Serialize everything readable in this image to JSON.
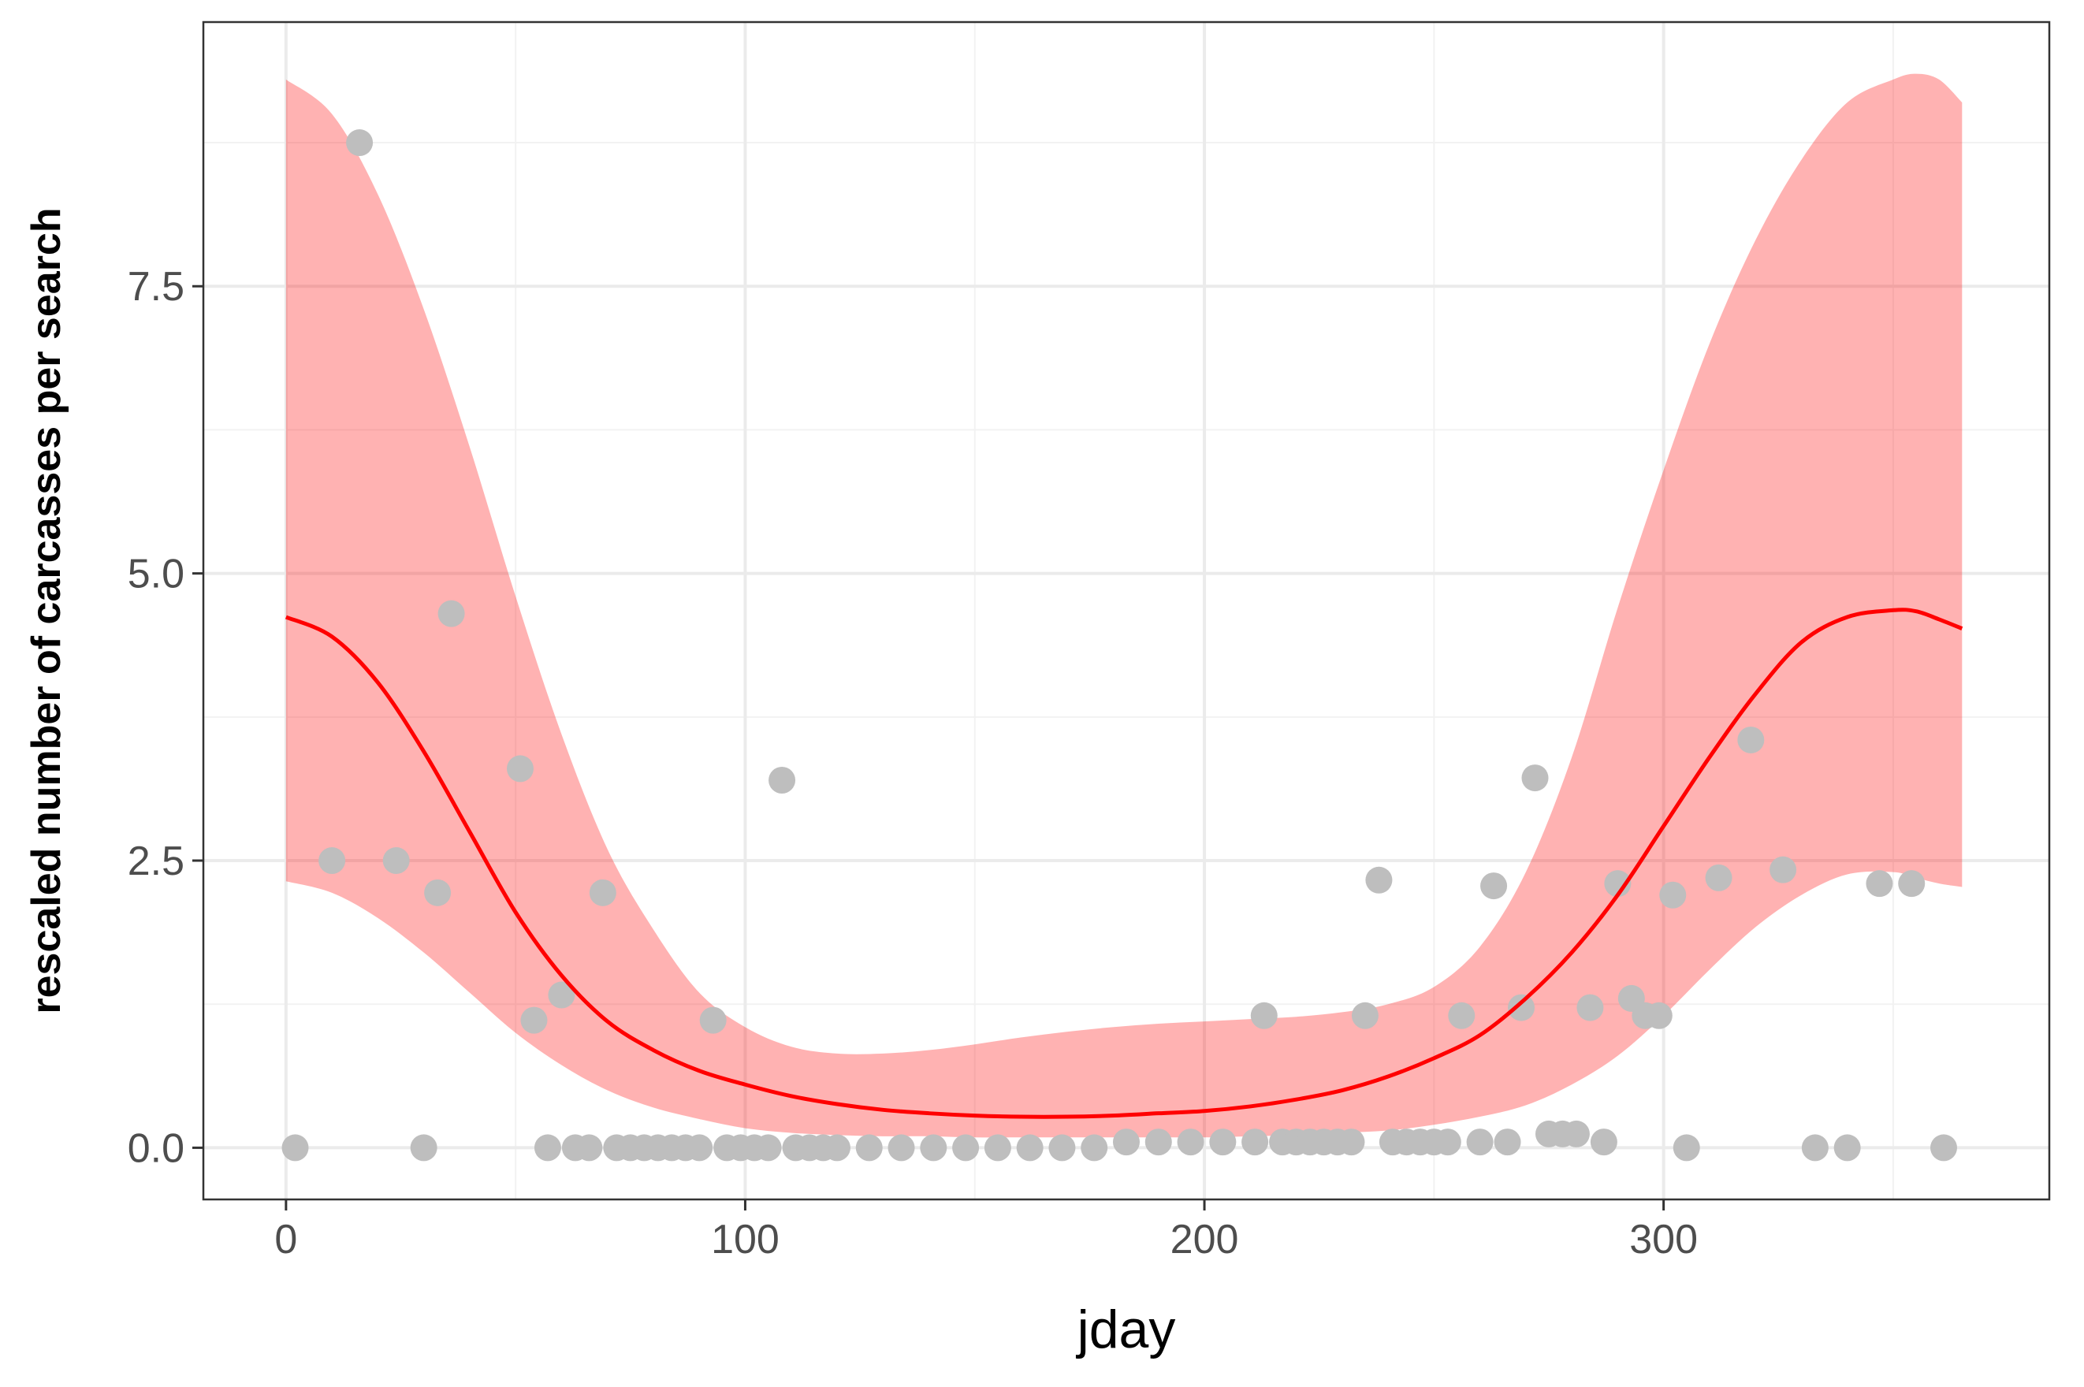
{
  "chart_data": {
    "type": "scatter",
    "title": "",
    "xlabel": "jday",
    "ylabel": "rescaled number of carcasses per search",
    "xlim": [
      -18,
      384
    ],
    "ylim": [
      -0.45,
      9.8
    ],
    "x_ticks": [
      0,
      100,
      200,
      300
    ],
    "x_tick_labels": [
      "0",
      "100",
      "200",
      "300"
    ],
    "y_ticks": [
      0,
      2.5,
      5,
      7.5
    ],
    "y_tick_labels": [
      "0.0",
      "2.5",
      "5.0",
      "7.5"
    ],
    "grid": true,
    "legend": "none",
    "colors": {
      "points": "#bebebe",
      "fit_line": "#ff0000",
      "ribbon": "#ff0000",
      "ribbon_opacity": 0.3,
      "grid_major": "#ebebeb",
      "grid_minor": "#f2f2f2",
      "panel_border": "#333333"
    },
    "series": [
      {
        "kind": "points",
        "points": [
          [
            2,
            0.0
          ],
          [
            10,
            2.5
          ],
          [
            16,
            8.75
          ],
          [
            24,
            2.5
          ],
          [
            30,
            0.0
          ],
          [
            33,
            2.22
          ],
          [
            36,
            4.65
          ],
          [
            51,
            3.3
          ],
          [
            54,
            1.11
          ],
          [
            57,
            0.0
          ],
          [
            60,
            1.33
          ],
          [
            63,
            0.0
          ],
          [
            66,
            0.0
          ],
          [
            69,
            2.22
          ],
          [
            72,
            0.0
          ],
          [
            75,
            0.0
          ],
          [
            78,
            0.0
          ],
          [
            81,
            0.0
          ],
          [
            84,
            0.0
          ],
          [
            87,
            0.0
          ],
          [
            90,
            0.0
          ],
          [
            93,
            1.11
          ],
          [
            96,
            0.0
          ],
          [
            99,
            0.0
          ],
          [
            102,
            0.0
          ],
          [
            105,
            0.0
          ],
          [
            108,
            3.2
          ],
          [
            111,
            0.0
          ],
          [
            114,
            0.0
          ],
          [
            117,
            0.0
          ],
          [
            120,
            0.0
          ],
          [
            127,
            0.0
          ],
          [
            134,
            0.0
          ],
          [
            141,
            0.0
          ],
          [
            148,
            0.0
          ],
          [
            155,
            0.0
          ],
          [
            162,
            0.0
          ],
          [
            169,
            0.0
          ],
          [
            176,
            0.0
          ],
          [
            183,
            0.05
          ],
          [
            190,
            0.05
          ],
          [
            197,
            0.05
          ],
          [
            204,
            0.05
          ],
          [
            211,
            0.05
          ],
          [
            213,
            1.15
          ],
          [
            217,
            0.05
          ],
          [
            220,
            0.05
          ],
          [
            223,
            0.05
          ],
          [
            226,
            0.05
          ],
          [
            229,
            0.05
          ],
          [
            232,
            0.05
          ],
          [
            235,
            1.15
          ],
          [
            238,
            2.33
          ],
          [
            241,
            0.05
          ],
          [
            244,
            0.05
          ],
          [
            247,
            0.05
          ],
          [
            250,
            0.05
          ],
          [
            253,
            0.05
          ],
          [
            256,
            1.15
          ],
          [
            260,
            0.05
          ],
          [
            263,
            2.28
          ],
          [
            266,
            0.05
          ],
          [
            269,
            1.22
          ],
          [
            272,
            3.22
          ],
          [
            275,
            0.12
          ],
          [
            278,
            0.12
          ],
          [
            281,
            0.12
          ],
          [
            284,
            1.22
          ],
          [
            287,
            0.05
          ],
          [
            290,
            2.3
          ],
          [
            293,
            1.3
          ],
          [
            296,
            1.15
          ],
          [
            299,
            1.15
          ],
          [
            302,
            2.2
          ],
          [
            305,
            0.0
          ],
          [
            312,
            2.35
          ],
          [
            319,
            3.55
          ],
          [
            326,
            2.42
          ],
          [
            333,
            0.0
          ],
          [
            340,
            0.0
          ],
          [
            347,
            2.3
          ],
          [
            354,
            2.3
          ],
          [
            361,
            0.0
          ]
        ]
      },
      {
        "kind": "fit_line",
        "x": [
          0,
          10,
          20,
          30,
          40,
          50,
          60,
          70,
          80,
          90,
          100,
          110,
          120,
          130,
          140,
          150,
          160,
          170,
          180,
          190,
          200,
          210,
          220,
          230,
          240,
          250,
          260,
          270,
          280,
          290,
          300,
          310,
          320,
          330,
          340,
          350,
          355,
          360,
          365
        ],
        "y": [
          4.62,
          4.45,
          4.05,
          3.45,
          2.75,
          2.05,
          1.5,
          1.1,
          0.85,
          0.67,
          0.55,
          0.45,
          0.38,
          0.33,
          0.3,
          0.28,
          0.27,
          0.27,
          0.28,
          0.3,
          0.32,
          0.36,
          0.42,
          0.5,
          0.62,
          0.78,
          0.98,
          1.3,
          1.7,
          2.2,
          2.8,
          3.4,
          3.95,
          4.4,
          4.62,
          4.68,
          4.67,
          4.6,
          4.52
        ]
      },
      {
        "kind": "ribbon",
        "x": [
          0,
          10,
          20,
          30,
          40,
          50,
          60,
          70,
          80,
          90,
          100,
          110,
          120,
          130,
          140,
          150,
          160,
          170,
          180,
          190,
          200,
          210,
          220,
          230,
          240,
          250,
          260,
          270,
          280,
          290,
          300,
          310,
          320,
          330,
          340,
          350,
          355,
          360,
          365
        ],
        "lower": [
          2.32,
          2.22,
          2.0,
          1.7,
          1.35,
          1.0,
          0.72,
          0.5,
          0.35,
          0.25,
          0.17,
          0.13,
          0.11,
          0.1,
          0.1,
          0.09,
          0.09,
          0.09,
          0.09,
          0.09,
          0.09,
          0.1,
          0.11,
          0.13,
          0.15,
          0.2,
          0.27,
          0.37,
          0.55,
          0.8,
          1.15,
          1.55,
          1.92,
          2.2,
          2.38,
          2.4,
          2.35,
          2.3,
          2.27
        ],
        "upper": [
          9.3,
          9.0,
          8.3,
          7.3,
          6.1,
          4.8,
          3.6,
          2.6,
          1.9,
          1.35,
          1.05,
          0.88,
          0.82,
          0.82,
          0.85,
          0.9,
          0.96,
          1.01,
          1.05,
          1.08,
          1.1,
          1.12,
          1.14,
          1.18,
          1.25,
          1.4,
          1.75,
          2.4,
          3.4,
          4.7,
          5.9,
          7.0,
          7.9,
          8.6,
          9.1,
          9.3,
          9.35,
          9.3,
          9.1
        ]
      }
    ]
  }
}
